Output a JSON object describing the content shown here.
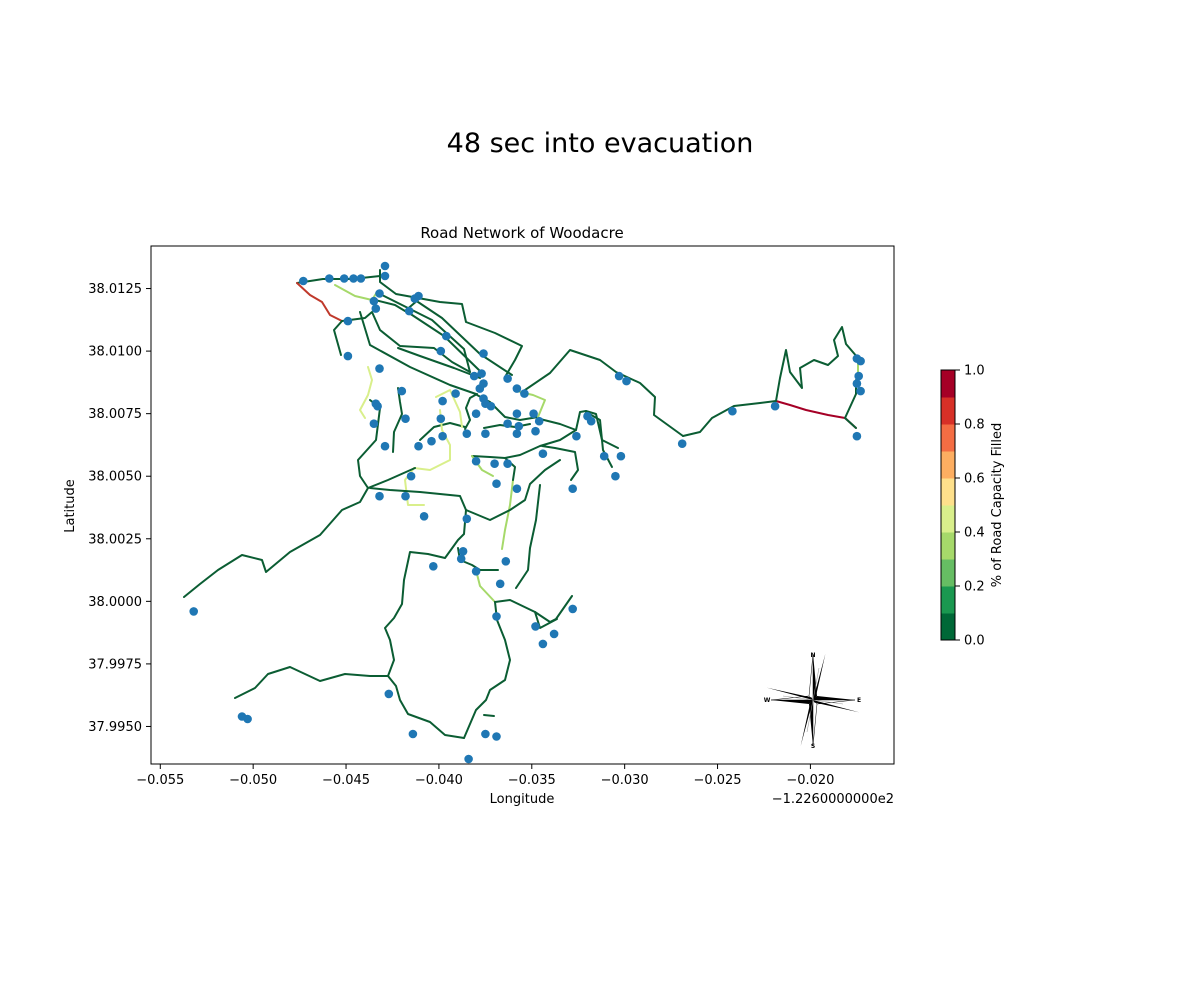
{
  "figure": {
    "suptitle": "48 sec into evacuation"
  },
  "map": {
    "title": "Road Network of Woodacre",
    "xlabel": "Longitude",
    "ylabel": "Latitude",
    "offset_text": "−1.2260000000e2",
    "x_ticks": [
      "−0.055",
      "−0.050",
      "−0.045",
      "−0.040",
      "−0.035",
      "−0.030",
      "−0.025",
      "−0.020"
    ],
    "y_ticks": [
      "37.9950",
      "37.9975",
      "38.0000",
      "38.0025",
      "38.0050",
      "38.0075",
      "38.0100",
      "38.0125"
    ],
    "compass": {
      "n": "N",
      "s": "S",
      "e": "E",
      "w": "W"
    },
    "node_color": "#1f77b4"
  },
  "colorbar": {
    "label": "% of Road Capacity Filled",
    "ticks": [
      "0.0",
      "0.2",
      "0.4",
      "0.6",
      "0.8",
      "1.0"
    ],
    "bands": [
      "#006837",
      "#1a9850",
      "#66bd63",
      "#a6d96a",
      "#d9ef8b",
      "#fee08b",
      "#fdae61",
      "#f46d43",
      "#d73027",
      "#a50026"
    ]
  },
  "chart_data": {
    "type": "scatter",
    "title": "Road Network of Woodacre",
    "xlabel": "Longitude",
    "ylabel": "Latitude",
    "x_offset": -122.6,
    "xlim": [
      -0.0555,
      -0.0155
    ],
    "ylim": [
      37.9935,
      38.0142
    ],
    "nodes": [
      [
        -0.0473,
        38.0128
      ],
      [
        -0.0459,
        38.0129
      ],
      [
        -0.0451,
        38.0129
      ],
      [
        -0.0446,
        38.0129
      ],
      [
        -0.0442,
        38.0129
      ],
      [
        -0.0429,
        38.0134
      ],
      [
        -0.0429,
        38.013
      ],
      [
        -0.0432,
        38.0123
      ],
      [
        -0.0435,
        38.012
      ],
      [
        -0.0434,
        38.0117
      ],
      [
        -0.0411,
        38.0122
      ],
      [
        -0.0413,
        38.0121
      ],
      [
        -0.0416,
        38.0116
      ],
      [
        -0.0449,
        38.0112
      ],
      [
        -0.0449,
        38.0098
      ],
      [
        -0.0396,
        38.0106
      ],
      [
        -0.0399,
        38.01
      ],
      [
        -0.0376,
        38.0099
      ],
      [
        -0.0363,
        38.0089
      ],
      [
        -0.0432,
        38.0093
      ],
      [
        -0.042,
        38.0084
      ],
      [
        -0.0434,
        38.0079
      ],
      [
        -0.0433,
        38.0078
      ],
      [
        -0.0435,
        38.0071
      ],
      [
        -0.0418,
        38.0073
      ],
      [
        -0.0429,
        38.0062
      ],
      [
        -0.0411,
        38.0062
      ],
      [
        -0.0398,
        38.008
      ],
      [
        -0.0399,
        38.0073
      ],
      [
        -0.0391,
        38.0083
      ],
      [
        -0.0404,
        38.0064
      ],
      [
        -0.0398,
        38.0066
      ],
      [
        -0.0385,
        38.0067
      ],
      [
        -0.038,
        38.0075
      ],
      [
        -0.0381,
        38.009
      ],
      [
        -0.0378,
        38.0085
      ],
      [
        -0.0377,
        38.0091
      ],
      [
        -0.0376,
        38.0087
      ],
      [
        -0.0376,
        38.0081
      ],
      [
        -0.0375,
        38.0079
      ],
      [
        -0.0372,
        38.0078
      ],
      [
        -0.0375,
        38.0067
      ],
      [
        -0.0358,
        38.0085
      ],
      [
        -0.0358,
        38.0075
      ],
      [
        -0.0363,
        38.0071
      ],
      [
        -0.0357,
        38.007
      ],
      [
        -0.0358,
        38.0067
      ],
      [
        -0.0354,
        38.0083
      ],
      [
        -0.0349,
        38.0075
      ],
      [
        -0.0346,
        38.0072
      ],
      [
        -0.0348,
        38.0068
      ],
      [
        -0.0344,
        38.0059
      ],
      [
        -0.038,
        38.0056
      ],
      [
        -0.037,
        38.0055
      ],
      [
        -0.0363,
        38.0055
      ],
      [
        -0.0358,
        38.0045
      ],
      [
        -0.0369,
        38.0047
      ],
      [
        -0.0432,
        38.0042
      ],
      [
        -0.0418,
        38.0042
      ],
      [
        -0.0415,
        38.005
      ],
      [
        -0.0408,
        38.0034
      ],
      [
        -0.0385,
        38.0033
      ],
      [
        -0.0387,
        38.002
      ],
      [
        -0.0388,
        38.0017
      ],
      [
        -0.038,
        38.0012
      ],
      [
        -0.0367,
        38.0007
      ],
      [
        -0.0364,
        38.0016
      ],
      [
        -0.0369,
        37.9994
      ],
      [
        -0.0348,
        37.999
      ],
      [
        -0.0344,
        37.9983
      ],
      [
        -0.0338,
        37.9987
      ],
      [
        -0.0328,
        37.9997
      ],
      [
        -0.0403,
        38.0014
      ],
      [
        -0.0328,
        38.0045
      ],
      [
        -0.0326,
        38.0066
      ],
      [
        -0.032,
        38.0074
      ],
      [
        -0.0318,
        38.0072
      ],
      [
        -0.0311,
        38.0058
      ],
      [
        -0.0302,
        38.0058
      ],
      [
        -0.0305,
        38.005
      ],
      [
        -0.0303,
        38.009
      ],
      [
        -0.0299,
        38.0088
      ],
      [
        -0.0269,
        38.0063
      ],
      [
        -0.0242,
        38.0076
      ],
      [
        -0.0219,
        38.0078
      ],
      [
        -0.0175,
        38.0066
      ],
      [
        -0.0175,
        38.0097
      ],
      [
        -0.0173,
        38.0096
      ],
      [
        -0.0174,
        38.009
      ],
      [
        -0.0175,
        38.0087
      ],
      [
        -0.0173,
        38.0084
      ],
      [
        -0.0532,
        37.9996
      ],
      [
        -0.0506,
        37.9954
      ],
      [
        -0.0503,
        37.9953
      ],
      [
        -0.0427,
        37.9963
      ],
      [
        -0.0414,
        37.9947
      ],
      [
        -0.0384,
        37.9937
      ],
      [
        -0.0375,
        37.9947
      ],
      [
        -0.0369,
        37.9946
      ]
    ]
  }
}
